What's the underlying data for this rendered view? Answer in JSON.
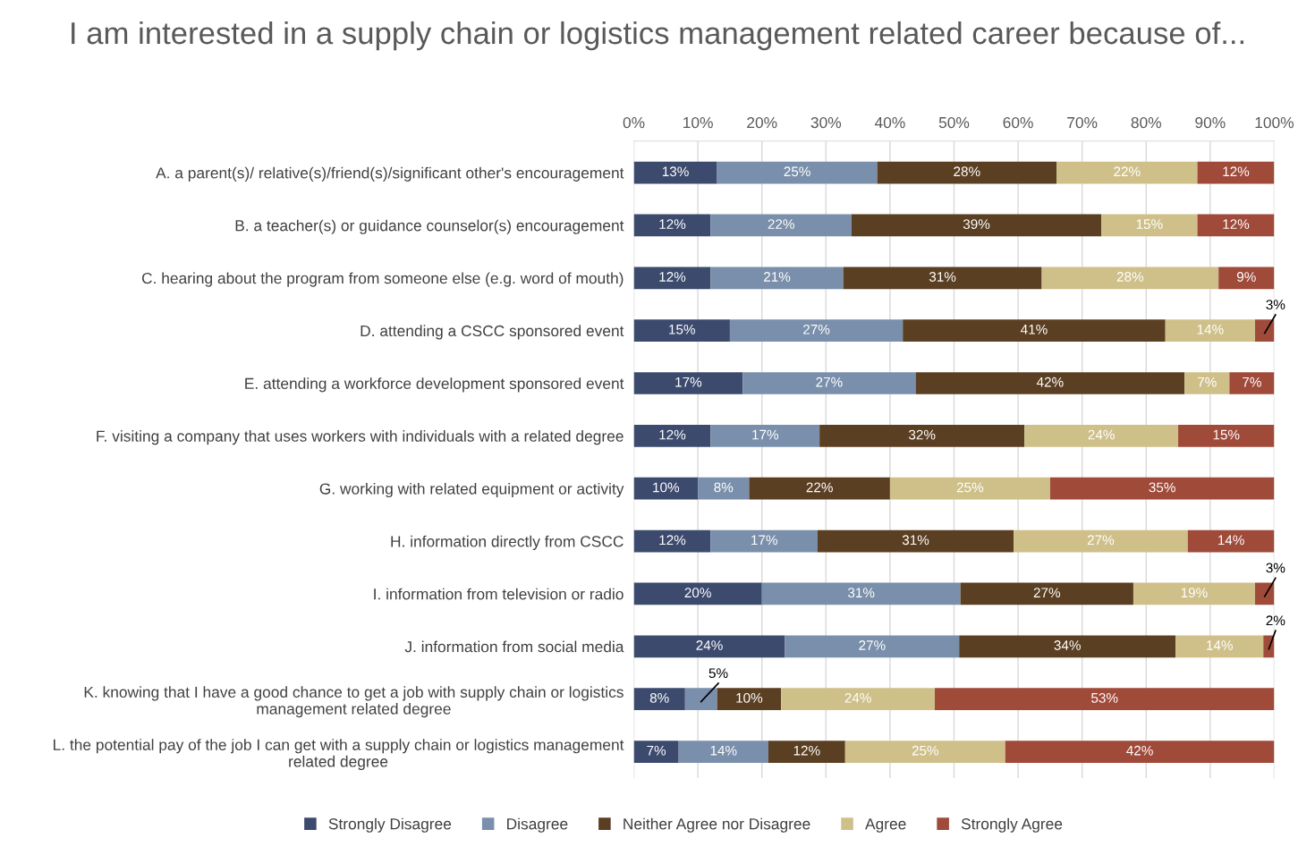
{
  "chart_data": {
    "type": "bar",
    "orientation": "horizontal",
    "stacked": true,
    "title": "I am interested in a supply chain or logistics management related career because of...",
    "categories": [
      "A. a parent(s)/ relative(s)/friend(s)/significant other's encouragement",
      "B. a teacher(s) or guidance counselor(s) encouragement",
      "C. hearing about the program from someone else (e.g. word of mouth)",
      "D. attending a CSCC sponsored event",
      "E. attending a workforce development sponsored event",
      "F. visiting a company that uses workers with individuals with a related degree",
      "G. working with related equipment or activity",
      "H. information directly from CSCC",
      "I. information from television or radio",
      "J. information from social media",
      "K. knowing that I have a good chance to get a job with supply chain or logistics management related degree",
      "L. the potential pay of the job I can get with a supply chain or logistics management related degree"
    ],
    "series": [
      {
        "name": "Strongly Disagree",
        "color": "#3c4a6e",
        "values": [
          13,
          12,
          12,
          15,
          17,
          12,
          10,
          12,
          20,
          23.6,
          8,
          7
        ],
        "value_labels": [
          "13%",
          "12%",
          "12%",
          "15%",
          "17%",
          "12%",
          "10%",
          "12%",
          "20%",
          "24%",
          "8%",
          "7%"
        ]
      },
      {
        "name": "Disagree",
        "color": "#7a8fab",
        "values": [
          25,
          22,
          20.7,
          27,
          27,
          17,
          8,
          16.7,
          31,
          27.2,
          5,
          14
        ],
        "value_labels": [
          "25%",
          "22%",
          "21%",
          "27%",
          "27%",
          "17%",
          "8%",
          "17%",
          "31%",
          "27%",
          "5%",
          "14%"
        ]
      },
      {
        "name": "Neither Agree nor Disagree",
        "color": "#5b3f22",
        "values": [
          28,
          39,
          31,
          41,
          42,
          32,
          22,
          30.6,
          27,
          33.8,
          10,
          12
        ],
        "value_labels": [
          "28%",
          "39%",
          "31%",
          "41%",
          "42%",
          "32%",
          "22%",
          "31%",
          "27%",
          "34%",
          "10%",
          "12%"
        ]
      },
      {
        "name": "Agree",
        "color": "#cfc08a",
        "values": [
          22,
          15,
          27.6,
          14,
          7,
          24,
          25,
          27.2,
          19,
          13.7,
          24,
          25
        ],
        "value_labels": [
          "22%",
          "15%",
          "28%",
          "14%",
          "7%",
          "24%",
          "25%",
          "27%",
          "19%",
          "14%",
          "24%",
          "25%"
        ]
      },
      {
        "name": "Strongly Agree",
        "color": "#a04a3a",
        "values": [
          12,
          12,
          8.7,
          3,
          7,
          15,
          35,
          13.5,
          3,
          1.7,
          53,
          42
        ],
        "value_labels": [
          "12%",
          "12%",
          "9%",
          "3%",
          "7%",
          "15%",
          "35%",
          "14%",
          "3%",
          "2%",
          "53%",
          "42%"
        ]
      }
    ],
    "xlim": [
      0,
      100
    ],
    "xticks": [
      {
        "value": 0,
        "label": "0%"
      },
      {
        "value": 10,
        "label": "10%"
      },
      {
        "value": 20,
        "label": "20%"
      },
      {
        "value": 30,
        "label": "30%"
      },
      {
        "value": 40,
        "label": "40%"
      },
      {
        "value": 50,
        "label": "50%"
      },
      {
        "value": 60,
        "label": "60%"
      },
      {
        "value": 70,
        "label": "70%"
      },
      {
        "value": 80,
        "label": "80%"
      },
      {
        "value": 90,
        "label": "90%"
      },
      {
        "value": 100,
        "label": "100%"
      }
    ],
    "grid": "x",
    "legend": "bottom"
  }
}
